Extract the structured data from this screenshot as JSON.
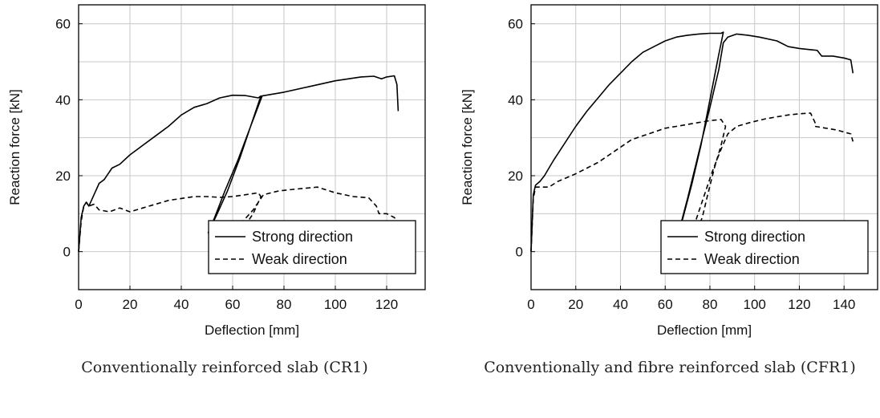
{
  "captions": {
    "left": "Conventionally reinforced slab (CR1)",
    "right": "Conventionally and fibre reinforced slab (CFR1)"
  },
  "chart_data": [
    {
      "type": "line",
      "xlabel": "Deflection [mm]",
      "ylabel": "Reaction force [kN]",
      "xlim": [
        0,
        135
      ],
      "ylim": [
        -10,
        65
      ],
      "xticks": [
        0,
        20,
        40,
        60,
        80,
        100,
        120
      ],
      "yticks": [
        0,
        20,
        40,
        60
      ],
      "grid": true,
      "legend_position": "bottom-right",
      "series": [
        {
          "name": "Strong direction",
          "style": "solid",
          "color": "#000000",
          "points": [
            [
              0,
              0
            ],
            [
              1,
              9
            ],
            [
              2,
              12
            ],
            [
              3,
              13
            ],
            [
              4,
              12
            ],
            [
              6,
              15
            ],
            [
              8,
              18
            ],
            [
              10,
              19
            ],
            [
              13,
              22
            ],
            [
              16,
              23
            ],
            [
              20,
              25.5
            ],
            [
              25,
              28
            ],
            [
              30,
              30.5
            ],
            [
              35,
              33
            ],
            [
              40,
              36
            ],
            [
              45,
              38
            ],
            [
              50,
              39
            ],
            [
              55,
              40.5
            ],
            [
              60,
              41.2
            ],
            [
              65,
              41.1
            ],
            [
              70,
              40.5
            ],
            [
              71,
              41
            ],
            [
              68,
              35
            ],
            [
              63,
              25
            ],
            [
              58,
              16
            ],
            [
              54,
              10
            ],
            [
              50.5,
              5
            ],
            [
              53,
              9
            ],
            [
              57,
              16
            ],
            [
              62,
              24
            ],
            [
              67,
              33
            ],
            [
              71.5,
              41
            ],
            [
              80,
              42
            ],
            [
              90,
              43.5
            ],
            [
              100,
              45
            ],
            [
              110,
              46
            ],
            [
              115,
              46.2
            ],
            [
              118,
              45.5
            ],
            [
              120,
              46
            ],
            [
              123,
              46.3
            ],
            [
              124,
              44
            ],
            [
              124.5,
              37
            ]
          ]
        },
        {
          "name": "Weak direction",
          "style": "dashed",
          "color": "#000000",
          "points": [
            [
              0,
              0
            ],
            [
              1,
              8
            ],
            [
              2,
              12
            ],
            [
              3,
              13
            ],
            [
              4,
              12
            ],
            [
              6,
              12.5
            ],
            [
              8,
              11
            ],
            [
              12,
              10.5
            ],
            [
              16,
              11.5
            ],
            [
              20,
              10.5
            ],
            [
              25,
              11.5
            ],
            [
              30,
              12.5
            ],
            [
              35,
              13.5
            ],
            [
              40,
              14
            ],
            [
              45,
              14.5
            ],
            [
              50,
              14.5
            ],
            [
              55,
              14.3
            ],
            [
              60,
              14.5
            ],
            [
              65,
              15
            ],
            [
              70,
              15.5
            ],
            [
              71,
              14.5
            ],
            [
              68,
              10
            ],
            [
              65,
              7
            ],
            [
              62,
              5
            ],
            [
              58,
              2
            ],
            [
              55,
              0
            ],
            [
              52,
              -2
            ],
            [
              51,
              -4
            ],
            [
              53,
              -2
            ],
            [
              56,
              1
            ],
            [
              60,
              4.5
            ],
            [
              64,
              8
            ],
            [
              68,
              11
            ],
            [
              72,
              15
            ],
            [
              78,
              16
            ],
            [
              85,
              16.5
            ],
            [
              93,
              17
            ],
            [
              100,
              15.5
            ],
            [
              107,
              14.5
            ],
            [
              113,
              14.2
            ],
            [
              116,
              12
            ],
            [
              117,
              10
            ],
            [
              120,
              10
            ],
            [
              123,
              9
            ],
            [
              124,
              8
            ]
          ]
        }
      ]
    },
    {
      "type": "line",
      "xlabel": "Deflection [mm]",
      "ylabel": "Reaction force [kN]",
      "xlim": [
        0,
        155
      ],
      "ylim": [
        -10,
        65
      ],
      "xticks": [
        0,
        20,
        40,
        60,
        80,
        100,
        120,
        140
      ],
      "yticks": [
        0,
        20,
        40,
        60
      ],
      "grid": true,
      "legend_position": "bottom-right",
      "series": [
        {
          "name": "Strong direction",
          "style": "solid",
          "color": "#000000",
          "points": [
            [
              0,
              0
            ],
            [
              1,
              15
            ],
            [
              2,
              17.5
            ],
            [
              4,
              18.5
            ],
            [
              6,
              20
            ],
            [
              8,
              22
            ],
            [
              10,
              24
            ],
            [
              15,
              28.5
            ],
            [
              20,
              33
            ],
            [
              25,
              37
            ],
            [
              30,
              40.5
            ],
            [
              35,
              44
            ],
            [
              40,
              47
            ],
            [
              45,
              50
            ],
            [
              50,
              52.5
            ],
            [
              55,
              54
            ],
            [
              60,
              55.5
            ],
            [
              65,
              56.5
            ],
            [
              70,
              57
            ],
            [
              75,
              57.3
            ],
            [
              80,
              57.5
            ],
            [
              85,
              57.5
            ],
            [
              86,
              57.8
            ],
            [
              84,
              52
            ],
            [
              80,
              40
            ],
            [
              76,
              28
            ],
            [
              72,
              18
            ],
            [
              68,
              9
            ],
            [
              66,
              5
            ],
            [
              70,
              14
            ],
            [
              75,
              26
            ],
            [
              80,
              38
            ],
            [
              84,
              48
            ],
            [
              86,
              55
            ],
            [
              88,
              56.5
            ],
            [
              92,
              57.3
            ],
            [
              97,
              57
            ],
            [
              102,
              56.5
            ],
            [
              110,
              55.5
            ],
            [
              115,
              54
            ],
            [
              120,
              53.5
            ],
            [
              125,
              53.2
            ],
            [
              128,
              53
            ],
            [
              130,
              51.5
            ],
            [
              135,
              51.5
            ],
            [
              140,
              51
            ],
            [
              143,
              50.5
            ],
            [
              144,
              47
            ]
          ]
        },
        {
          "name": "Weak direction",
          "style": "dashed",
          "color": "#000000",
          "points": [
            [
              0,
              0
            ],
            [
              1,
              14
            ],
            [
              2,
              17
            ],
            [
              5,
              17
            ],
            [
              8,
              17
            ],
            [
              12,
              18.5
            ],
            [
              16,
              19.5
            ],
            [
              20,
              20.5
            ],
            [
              25,
              22
            ],
            [
              30,
              23.5
            ],
            [
              35,
              25.5
            ],
            [
              40,
              27.5
            ],
            [
              45,
              29.5
            ],
            [
              50,
              30.5
            ],
            [
              55,
              31.5
            ],
            [
              60,
              32.5
            ],
            [
              65,
              33
            ],
            [
              70,
              33.5
            ],
            [
              75,
              34
            ],
            [
              80,
              34.5
            ],
            [
              85,
              34.8
            ],
            [
              87,
              33
            ],
            [
              85,
              28
            ],
            [
              82,
              22
            ],
            [
              79,
              15
            ],
            [
              77,
              10
            ],
            [
              75,
              6
            ],
            [
              72,
              4
            ],
            [
              70,
              2
            ],
            [
              73,
              7
            ],
            [
              77,
              14
            ],
            [
              81,
              21
            ],
            [
              85,
              27
            ],
            [
              88,
              31
            ],
            [
              92,
              33
            ],
            [
              98,
              34
            ],
            [
              105,
              35
            ],
            [
              110,
              35.5
            ],
            [
              115,
              36
            ],
            [
              120,
              36.3
            ],
            [
              125,
              36.5
            ],
            [
              127,
              34
            ],
            [
              127,
              33
            ],
            [
              132,
              32.5
            ],
            [
              137,
              32
            ],
            [
              140,
              31.5
            ],
            [
              143,
              31
            ],
            [
              144,
              29
            ]
          ]
        }
      ]
    }
  ]
}
